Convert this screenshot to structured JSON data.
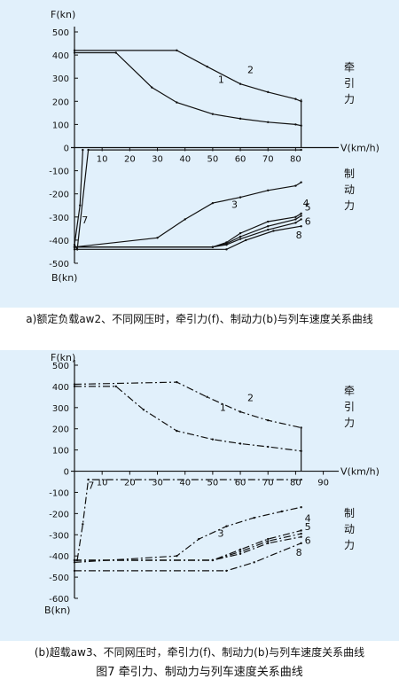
{
  "captions": {
    "a": "a)额定负载aw2、不同网压时，牵引力(f)、制动力(b)与列车速度关系曲线",
    "b": "(b)超载aw3、不同网压时，牵引力(f)、制动力(b)与列车速度关系曲线",
    "figure": "图7 牵引力、制动力与列车速度关系曲线"
  },
  "chart_data": [
    {
      "type": "line",
      "ylabel_top": "F(kn)",
      "ylabel_bottom": "B(kn)",
      "xlabel": "V(km/h)",
      "traction_label": [
        "牵",
        "引",
        "力"
      ],
      "braking_label": [
        "制",
        "动",
        "力"
      ],
      "xlim": [
        0,
        85
      ],
      "ylim": [
        -500,
        500
      ],
      "yticks": [
        500,
        400,
        300,
        200,
        100,
        0,
        -100,
        -200,
        -300,
        -400,
        -500
      ],
      "xticks": [
        10,
        20,
        30,
        40,
        50,
        60,
        70,
        80
      ],
      "line_style": "solid",
      "series": [
        {
          "name": "1",
          "x": [
            0,
            15,
            28,
            37,
            50,
            60,
            70,
            80,
            82
          ],
          "y": [
            410,
            410,
            260,
            195,
            145,
            125,
            110,
            100,
            95
          ]
        },
        {
          "name": "2",
          "x": [
            0,
            37,
            48,
            60,
            70,
            80,
            82
          ],
          "y": [
            420,
            420,
            350,
            275,
            240,
            210,
            200
          ]
        },
        {
          "name": "3",
          "x": [
            0,
            30,
            40,
            50,
            60,
            70,
            80,
            82
          ],
          "y": [
            -430,
            -390,
            -310,
            -240,
            -215,
            -185,
            -165,
            -150
          ]
        },
        {
          "name": "4",
          "x": [
            0,
            50,
            55,
            60,
            70,
            80,
            82
          ],
          "y": [
            -430,
            -430,
            -410,
            -370,
            -320,
            -300,
            -285
          ]
        },
        {
          "name": "5",
          "x": [
            0,
            50,
            55,
            60,
            70,
            80,
            82
          ],
          "y": [
            -430,
            -430,
            -415,
            -385,
            -340,
            -310,
            -295
          ]
        },
        {
          "name": "6",
          "x": [
            0,
            50,
            55,
            60,
            70,
            80,
            82
          ],
          "y": [
            -430,
            -430,
            -420,
            -395,
            -355,
            -325,
            -310
          ]
        },
        {
          "name": "7",
          "x": [
            3,
            2,
            0,
            1,
            5,
            82
          ],
          "y": [
            -10,
            -250,
            -420,
            -440,
            -10,
            -10
          ]
        },
        {
          "name": "8",
          "x": [
            0,
            55,
            62,
            72,
            82
          ],
          "y": [
            -440,
            -440,
            -400,
            -360,
            -340
          ]
        }
      ],
      "curve_labels": [
        "1",
        "2",
        "3",
        "4",
        "5",
        "6",
        "7",
        "8"
      ]
    },
    {
      "type": "line",
      "ylabel_top": "F(kn)",
      "ylabel_bottom": "B(kn)",
      "xlabel": "V(km/h)",
      "traction_label": [
        "牵",
        "引",
        "力"
      ],
      "braking_label": [
        "制",
        "动",
        "力"
      ],
      "xlim": [
        0,
        90
      ],
      "ylim": [
        -600,
        500
      ],
      "yticks": [
        500,
        400,
        300,
        200,
        100,
        0,
        -100,
        -200,
        -300,
        -400,
        -500,
        -600
      ],
      "xticks": [
        10,
        20,
        30,
        40,
        50,
        60,
        70,
        80,
        90
      ],
      "line_style": "dashdot",
      "series": [
        {
          "name": "1",
          "x": [
            0,
            15,
            25,
            37,
            50,
            60,
            70,
            82
          ],
          "y": [
            400,
            400,
            290,
            190,
            150,
            130,
            115,
            95
          ]
        },
        {
          "name": "2",
          "x": [
            0,
            37,
            48,
            60,
            70,
            82
          ],
          "y": [
            410,
            420,
            350,
            280,
            240,
            205
          ]
        },
        {
          "name": "3",
          "x": [
            0,
            37,
            45,
            55,
            65,
            75,
            82
          ],
          "y": [
            -430,
            -400,
            -320,
            -260,
            -220,
            -190,
            -170
          ]
        },
        {
          "name": "4",
          "x": [
            0,
            50,
            60,
            70,
            82
          ],
          "y": [
            -420,
            -420,
            -370,
            -320,
            -280
          ]
        },
        {
          "name": "5",
          "x": [
            0,
            50,
            60,
            70,
            82
          ],
          "y": [
            -420,
            -420,
            -380,
            -330,
            -295
          ]
        },
        {
          "name": "6",
          "x": [
            0,
            50,
            60,
            70,
            82
          ],
          "y": [
            -420,
            -420,
            -390,
            -340,
            -310
          ]
        },
        {
          "name": "7",
          "x": [
            1,
            3,
            5,
            82
          ],
          "y": [
            -420,
            -250,
            -40,
            -40
          ]
        },
        {
          "name": "8",
          "x": [
            0,
            55,
            65,
            82
          ],
          "y": [
            -470,
            -470,
            -430,
            -340
          ]
        }
      ],
      "curve_labels": [
        "1",
        "2",
        "3",
        "4",
        "5",
        "6",
        "7",
        "8"
      ]
    }
  ]
}
